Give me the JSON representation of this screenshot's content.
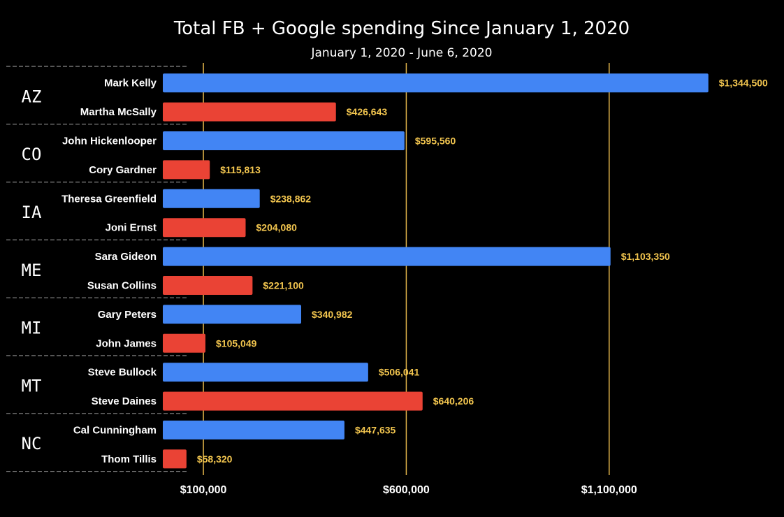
{
  "chart_data": {
    "type": "bar",
    "orientation": "horizontal",
    "title": "Total FB + Google spending Since January 1, 2020",
    "subtitle": "January 1, 2020 - June 6, 2020",
    "xlabel": "",
    "ylabel": "",
    "xlim": [
      0,
      1400000
    ],
    "x_ticks": [
      100000,
      600000,
      1100000
    ],
    "x_tick_labels": [
      "$100,000",
      "$600,000",
      "$1,100,000"
    ],
    "grid": "vertical",
    "colors": {
      "democrat": "#4285f4",
      "republican": "#ea4335",
      "value_label": "#f3c64f",
      "gridline": "#e3b54a",
      "background": "#000000",
      "text": "#ffffff"
    },
    "groups": [
      {
        "state": "AZ",
        "candidates": [
          {
            "name": "Mark Kelly",
            "party": "democrat",
            "value": 1344500,
            "label": "$1,344,500"
          },
          {
            "name": "Martha McSally",
            "party": "republican",
            "value": 426643,
            "label": "$426,643"
          }
        ]
      },
      {
        "state": "CO",
        "candidates": [
          {
            "name": "John Hickenlooper",
            "party": "democrat",
            "value": 595560,
            "label": "$595,560"
          },
          {
            "name": "Cory Gardner",
            "party": "republican",
            "value": 115813,
            "label": "$115,813"
          }
        ]
      },
      {
        "state": "IA",
        "candidates": [
          {
            "name": "Theresa Greenfield",
            "party": "democrat",
            "value": 238862,
            "label": "$238,862"
          },
          {
            "name": "Joni Ernst",
            "party": "republican",
            "value": 204080,
            "label": "$204,080"
          }
        ]
      },
      {
        "state": "ME",
        "candidates": [
          {
            "name": "Sara Gideon",
            "party": "democrat",
            "value": 1103350,
            "label": "$1,103,350"
          },
          {
            "name": "Susan Collins",
            "party": "republican",
            "value": 221100,
            "label": "$221,100"
          }
        ]
      },
      {
        "state": "MI",
        "candidates": [
          {
            "name": "Gary Peters",
            "party": "democrat",
            "value": 340982,
            "label": "$340,982"
          },
          {
            "name": "John James",
            "party": "republican",
            "value": 105049,
            "label": "$105,049"
          }
        ]
      },
      {
        "state": "MT",
        "candidates": [
          {
            "name": "Steve Bullock",
            "party": "democrat",
            "value": 506041,
            "label": "$506,041"
          },
          {
            "name": "Steve Daines",
            "party": "republican",
            "value": 640206,
            "label": "$640,206"
          }
        ]
      },
      {
        "state": "NC",
        "candidates": [
          {
            "name": "Cal Cunningham",
            "party": "democrat",
            "value": 447635,
            "label": "$447,635"
          },
          {
            "name": "Thom Tillis",
            "party": "republican",
            "value": 58320,
            "label": "$58,320"
          }
        ]
      }
    ]
  }
}
